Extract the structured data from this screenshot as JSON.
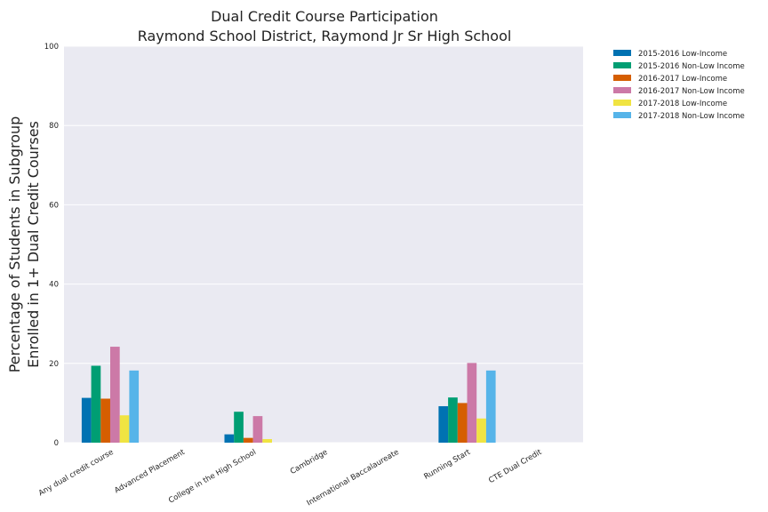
{
  "chart_data": {
    "type": "bar",
    "title": "Dual Credit Course Participation",
    "subtitle": "Raymond School District, Raymond Jr Sr High School",
    "ylabel_line1": "Percentage of Students in Subgroup",
    "ylabel_line2": "Enrolled in 1+ Dual Credit Courses",
    "xlabel": "",
    "ylim": [
      0,
      100
    ],
    "yticks": [
      "0",
      "20",
      "40",
      "60",
      "80",
      "100"
    ],
    "grid": true,
    "legend_position": "outside-top-right",
    "categories": [
      "Any dual credit course",
      "Advanced Placement",
      "College in the High School",
      "Cambridge",
      "International Baccalaureate",
      "Running Start",
      "CTE Dual Credit"
    ],
    "series": [
      {
        "name": "2015-2016 Low-Income",
        "color": "#0072b2",
        "values": [
          11.3,
          0,
          2.1,
          0,
          0,
          9.2,
          0
        ]
      },
      {
        "name": "2015-2016 Non-Low Income",
        "color": "#009e73",
        "values": [
          19.4,
          0,
          7.8,
          0,
          0,
          11.4,
          0
        ]
      },
      {
        "name": "2016-2017 Low-Income",
        "color": "#d55e00",
        "values": [
          11.1,
          0,
          1.2,
          0,
          0,
          10.0,
          0
        ]
      },
      {
        "name": "2016-2017 Non-Low Income",
        "color": "#cc79a7",
        "values": [
          24.2,
          0,
          6.7,
          0,
          0,
          20.1,
          0
        ]
      },
      {
        "name": "2017-2018 Low-Income",
        "color": "#f0e442",
        "values": [
          6.9,
          0,
          0.9,
          0,
          0,
          6.1,
          0
        ]
      },
      {
        "name": "2017-2018 Non-Low Income",
        "color": "#56b4e9",
        "values": [
          18.2,
          0,
          0,
          0,
          0,
          18.2,
          0
        ]
      }
    ]
  }
}
